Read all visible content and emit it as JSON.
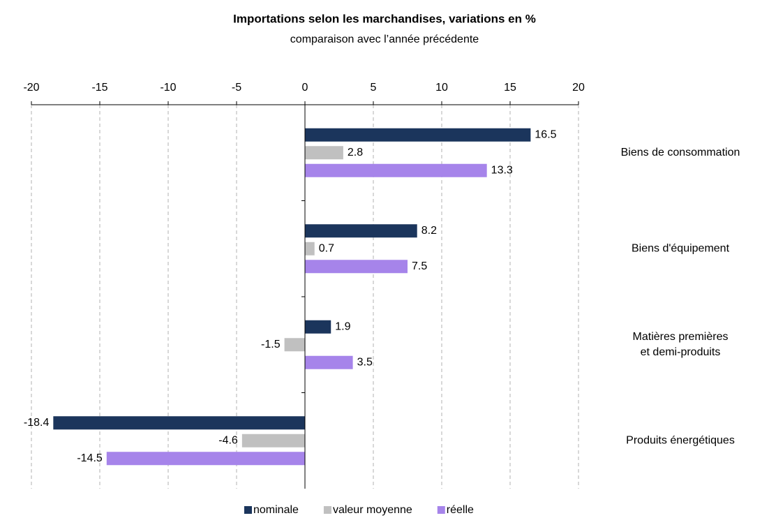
{
  "chart_data": {
    "type": "hbar",
    "title": "Importations selon les marchandises, variations en %",
    "subtitle": "comparaison avec l’année précédente",
    "categories": [
      "Biens de consommation",
      "Biens d'équipement",
      "Matières premières\net demi-produits",
      "Produits énergétiques"
    ],
    "series": [
      {
        "name": "nominale",
        "color": "#1b355c",
        "values": [
          16.5,
          8.2,
          1.9,
          -18.4
        ]
      },
      {
        "name": "valeur moyenne",
        "color": "#c0c0c0",
        "values": [
          2.8,
          0.7,
          -1.5,
          -4.6
        ]
      },
      {
        "name": "réelle",
        "color": "#a684ea",
        "values": [
          13.3,
          7.5,
          3.5,
          -14.5
        ]
      }
    ],
    "xlim": [
      -20,
      20
    ],
    "xticks": [
      -20,
      -15,
      -10,
      -5,
      0,
      5,
      10,
      15,
      20
    ],
    "grid": true,
    "legend": "bottom"
  }
}
